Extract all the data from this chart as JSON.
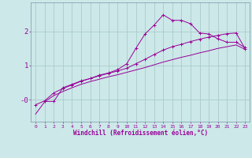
{
  "xlabel": "Windchill (Refroidissement éolien,°C)",
  "bg_color": "#cce8e8",
  "grid_color": "#aacccc",
  "line_color": "#990099",
  "xlim": [
    -0.5,
    23.5
  ],
  "ylim": [
    -0.65,
    2.85
  ],
  "yticks": [
    0,
    1,
    2
  ],
  "ytick_labels": [
    "-0",
    "1",
    "2"
  ],
  "xticks": [
    0,
    1,
    2,
    3,
    4,
    5,
    6,
    7,
    8,
    9,
    10,
    11,
    12,
    13,
    14,
    15,
    16,
    17,
    18,
    19,
    20,
    21,
    22,
    23
  ],
  "line1_x": [
    1,
    2,
    3,
    4,
    5,
    6,
    7,
    8,
    9,
    10,
    11,
    12,
    13,
    14,
    15,
    16,
    17,
    18,
    19,
    20,
    21,
    22,
    23
  ],
  "line1_y": [
    -0.05,
    -0.05,
    0.35,
    0.45,
    0.55,
    0.62,
    0.72,
    0.78,
    0.88,
    1.05,
    1.5,
    1.92,
    2.18,
    2.48,
    2.32,
    2.32,
    2.22,
    1.95,
    1.92,
    1.78,
    1.68,
    1.68,
    1.52
  ],
  "line2_x": [
    0,
    1,
    2,
    3,
    4,
    5,
    6,
    7,
    8,
    9,
    10,
    11,
    12,
    13,
    14,
    15,
    16,
    17,
    18,
    19,
    20,
    21,
    22,
    23
  ],
  "line2_y": [
    -0.15,
    -0.03,
    0.2,
    0.33,
    0.43,
    0.54,
    0.62,
    0.7,
    0.77,
    0.84,
    0.92,
    1.05,
    1.18,
    1.32,
    1.45,
    1.55,
    1.62,
    1.7,
    1.77,
    1.83,
    1.88,
    1.93,
    1.95,
    1.48
  ],
  "line3_x": [
    0,
    1,
    2,
    3,
    4,
    5,
    6,
    7,
    8,
    9,
    10,
    11,
    12,
    13,
    14,
    15,
    16,
    17,
    18,
    19,
    20,
    21,
    22,
    23
  ],
  "line3_y": [
    -0.42,
    -0.06,
    0.12,
    0.24,
    0.35,
    0.45,
    0.53,
    0.6,
    0.67,
    0.73,
    0.8,
    0.87,
    0.94,
    1.02,
    1.1,
    1.17,
    1.24,
    1.3,
    1.37,
    1.43,
    1.5,
    1.55,
    1.6,
    1.47
  ]
}
